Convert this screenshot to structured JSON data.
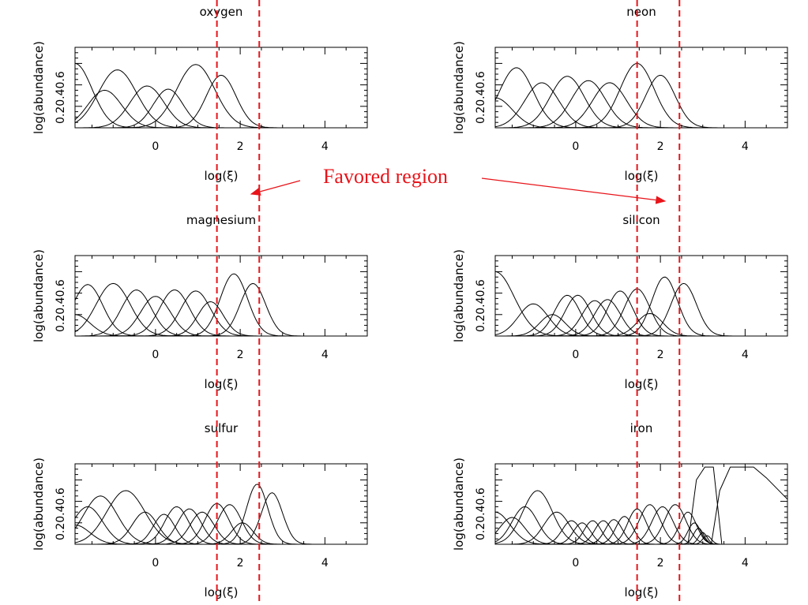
{
  "chart_data": [
    {
      "type": "line",
      "title": "oxygen",
      "xlabel": "log(ξ)",
      "ylabel": "log(abundance)",
      "xlim": [
        -1.9,
        5.0
      ],
      "ylim": [
        0,
        0.75
      ],
      "xticks": [
        "0",
        "2",
        "4"
      ],
      "yticks": [
        "0.2",
        "0.4",
        "0.6"
      ],
      "series": [
        {
          "peak_x": -1.9,
          "peak_y": 0.6,
          "width": 0.4
        },
        {
          "peak_x": -1.2,
          "peak_y": 0.35,
          "width": 0.4
        },
        {
          "peak_x": -0.9,
          "peak_y": 0.54,
          "width": 0.45
        },
        {
          "peak_x": -0.2,
          "peak_y": 0.39,
          "width": 0.4
        },
        {
          "peak_x": 0.3,
          "peak_y": 0.36,
          "width": 0.35
        },
        {
          "peak_x": 0.95,
          "peak_y": 0.59,
          "width": 0.45
        },
        {
          "peak_x": 1.55,
          "peak_y": 0.49,
          "width": 0.35
        }
      ]
    },
    {
      "type": "line",
      "title": "neon",
      "xlabel": "log(ξ)",
      "ylabel": "log(abundance)",
      "xlim": [
        -1.9,
        5.0
      ],
      "ylim": [
        0,
        0.75
      ],
      "xticks": [
        "0",
        "2",
        "4"
      ],
      "yticks": [
        "0.2",
        "0.4",
        "0.6"
      ],
      "series": [
        {
          "peak_x": -1.9,
          "peak_y": 0.28,
          "width": 0.4
        },
        {
          "peak_x": -1.4,
          "peak_y": 0.56,
          "width": 0.4
        },
        {
          "peak_x": -0.8,
          "peak_y": 0.42,
          "width": 0.4
        },
        {
          "peak_x": -0.2,
          "peak_y": 0.48,
          "width": 0.4
        },
        {
          "peak_x": 0.3,
          "peak_y": 0.44,
          "width": 0.4
        },
        {
          "peak_x": 0.8,
          "peak_y": 0.42,
          "width": 0.4
        },
        {
          "peak_x": 1.45,
          "peak_y": 0.6,
          "width": 0.4
        },
        {
          "peak_x": 2.0,
          "peak_y": 0.49,
          "width": 0.35
        }
      ]
    },
    {
      "type": "line",
      "title": "magnesium",
      "xlabel": "log(ξ)",
      "ylabel": "log(abundance)",
      "xlim": [
        -1.9,
        5.0
      ],
      "ylim": [
        0,
        0.75
      ],
      "xticks": [
        "0",
        "2",
        "4"
      ],
      "yticks": [
        "0.2",
        "0.4",
        "0.6"
      ],
      "series": [
        {
          "peak_x": -1.9,
          "peak_y": 0.2,
          "width": 0.35
        },
        {
          "peak_x": -1.6,
          "peak_y": 0.48,
          "width": 0.35
        },
        {
          "peak_x": -1.0,
          "peak_y": 0.49,
          "width": 0.4
        },
        {
          "peak_x": -0.45,
          "peak_y": 0.43,
          "width": 0.35
        },
        {
          "peak_x": 0.0,
          "peak_y": 0.37,
          "width": 0.35
        },
        {
          "peak_x": 0.45,
          "peak_y": 0.43,
          "width": 0.35
        },
        {
          "peak_x": 0.95,
          "peak_y": 0.42,
          "width": 0.35
        },
        {
          "peak_x": 1.3,
          "peak_y": 0.32,
          "width": 0.3
        },
        {
          "peak_x": 1.85,
          "peak_y": 0.58,
          "width": 0.32
        },
        {
          "peak_x": 2.3,
          "peak_y": 0.49,
          "width": 0.3
        }
      ]
    },
    {
      "type": "line",
      "title": "silicon",
      "xlabel": "log(ξ)",
      "ylabel": "log(abundance)",
      "xlim": [
        -1.9,
        5.0
      ],
      "ylim": [
        0,
        0.75
      ],
      "xticks": [
        "0",
        "2",
        "4"
      ],
      "yticks": [
        "0.2",
        "0.4",
        "0.6"
      ],
      "series": [
        {
          "peak_x": -1.9,
          "peak_y": 0.6,
          "width": 0.45
        },
        {
          "peak_x": -1.0,
          "peak_y": 0.3,
          "width": 0.35
        },
        {
          "peak_x": -0.55,
          "peak_y": 0.2,
          "width": 0.3
        },
        {
          "peak_x": -0.2,
          "peak_y": 0.38,
          "width": 0.3
        },
        {
          "peak_x": 0.05,
          "peak_y": 0.38,
          "width": 0.3
        },
        {
          "peak_x": 0.45,
          "peak_y": 0.33,
          "width": 0.3
        },
        {
          "peak_x": 0.75,
          "peak_y": 0.34,
          "width": 0.3
        },
        {
          "peak_x": 1.05,
          "peak_y": 0.42,
          "width": 0.3
        },
        {
          "peak_x": 1.45,
          "peak_y": 0.44,
          "width": 0.3
        },
        {
          "peak_x": 1.75,
          "peak_y": 0.21,
          "width": 0.3
        },
        {
          "peak_x": 2.1,
          "peak_y": 0.55,
          "width": 0.3
        },
        {
          "peak_x": 2.55,
          "peak_y": 0.49,
          "width": 0.3
        }
      ]
    },
    {
      "type": "line",
      "title": "sulfur",
      "xlabel": "log(ξ)",
      "ylabel": "log(abundance)",
      "xlim": [
        -1.9,
        5.0
      ],
      "ylim": [
        0,
        0.75
      ],
      "xticks": [
        "0",
        "2",
        "4"
      ],
      "yticks": [
        "0.2",
        "0.4",
        "0.6"
      ],
      "series": [
        {
          "peak_x": -1.9,
          "peak_y": 0.18,
          "width": 0.35
        },
        {
          "peak_x": -1.6,
          "peak_y": 0.35,
          "width": 0.35
        },
        {
          "peak_x": -1.3,
          "peak_y": 0.45,
          "width": 0.4
        },
        {
          "peak_x": -0.7,
          "peak_y": 0.5,
          "width": 0.45
        },
        {
          "peak_x": -0.25,
          "peak_y": 0.3,
          "width": 0.3
        },
        {
          "peak_x": 0.2,
          "peak_y": 0.28,
          "width": 0.25
        },
        {
          "peak_x": 0.5,
          "peak_y": 0.35,
          "width": 0.28
        },
        {
          "peak_x": 0.8,
          "peak_y": 0.33,
          "width": 0.28
        },
        {
          "peak_x": 1.1,
          "peak_y": 0.3,
          "width": 0.28
        },
        {
          "peak_x": 1.45,
          "peak_y": 0.38,
          "width": 0.28
        },
        {
          "peak_x": 1.75,
          "peak_y": 0.37,
          "width": 0.28
        },
        {
          "peak_x": 2.05,
          "peak_y": 0.2,
          "width": 0.25
        },
        {
          "peak_x": 2.4,
          "peak_y": 0.56,
          "width": 0.25
        },
        {
          "peak_x": 2.75,
          "peak_y": 0.48,
          "width": 0.25
        }
      ]
    },
    {
      "type": "line",
      "title": "iron",
      "xlabel": "log(ξ)",
      "ylabel": "log(abundance)",
      "xlim": [
        -1.9,
        5.0
      ],
      "ylim": [
        0,
        0.75
      ],
      "xticks": [
        "0",
        "2",
        "4"
      ],
      "yticks": [
        "0.2",
        "0.4",
        "0.6"
      ],
      "series": [
        {
          "peak_x": -1.9,
          "peak_y": 0.3,
          "width": 0.35
        },
        {
          "peak_x": -1.5,
          "peak_y": 0.25,
          "width": 0.3
        },
        {
          "peak_x": -1.2,
          "peak_y": 0.35,
          "width": 0.3
        },
        {
          "peak_x": -0.9,
          "peak_y": 0.5,
          "width": 0.35
        },
        {
          "peak_x": -0.45,
          "peak_y": 0.3,
          "width": 0.3
        },
        {
          "peak_x": -0.1,
          "peak_y": 0.22,
          "width": 0.22
        },
        {
          "peak_x": 0.15,
          "peak_y": 0.2,
          "width": 0.2
        },
        {
          "peak_x": 0.4,
          "peak_y": 0.22,
          "width": 0.2
        },
        {
          "peak_x": 0.65,
          "peak_y": 0.22,
          "width": 0.2
        },
        {
          "peak_x": 0.9,
          "peak_y": 0.23,
          "width": 0.2
        },
        {
          "peak_x": 1.15,
          "peak_y": 0.26,
          "width": 0.2
        },
        {
          "peak_x": 1.45,
          "peak_y": 0.33,
          "width": 0.22
        },
        {
          "peak_x": 1.75,
          "peak_y": 0.37,
          "width": 0.25
        },
        {
          "peak_x": 2.05,
          "peak_y": 0.35,
          "width": 0.25
        },
        {
          "peak_x": 2.35,
          "peak_y": 0.37,
          "width": 0.25
        },
        {
          "peak_x": 2.65,
          "peak_y": 0.3,
          "width": 0.2
        },
        {
          "peak_x": 2.8,
          "peak_y": 0.2,
          "width": 0.15
        },
        {
          "peak_x": 2.9,
          "peak_y": 0.15,
          "width": 0.12
        },
        {
          "peak_x": 3.0,
          "peak_y": 0.11,
          "width": 0.1
        },
        {
          "peak_x": 3.1,
          "peak_y": 0.08,
          "width": 0.1
        }
      ],
      "plateau_series": [
        {
          "x": [
            2.65,
            2.85,
            3.05,
            3.25,
            3.45
          ],
          "y": [
            0.0,
            0.6,
            0.72,
            0.72,
            0.0
          ]
        },
        {
          "x": [
            3.2,
            3.4,
            3.65,
            4.2,
            4.5,
            5.0
          ],
          "y": [
            0.0,
            0.5,
            0.72,
            0.72,
            0.62,
            0.42
          ]
        }
      ]
    }
  ],
  "favored_region": {
    "x_bounds": [
      1.45,
      2.45
    ],
    "color": "#e8141a",
    "label": "Favored region"
  },
  "colors": {
    "curves": "#000000",
    "axes": "#000000",
    "annotation": "#e8141a"
  }
}
